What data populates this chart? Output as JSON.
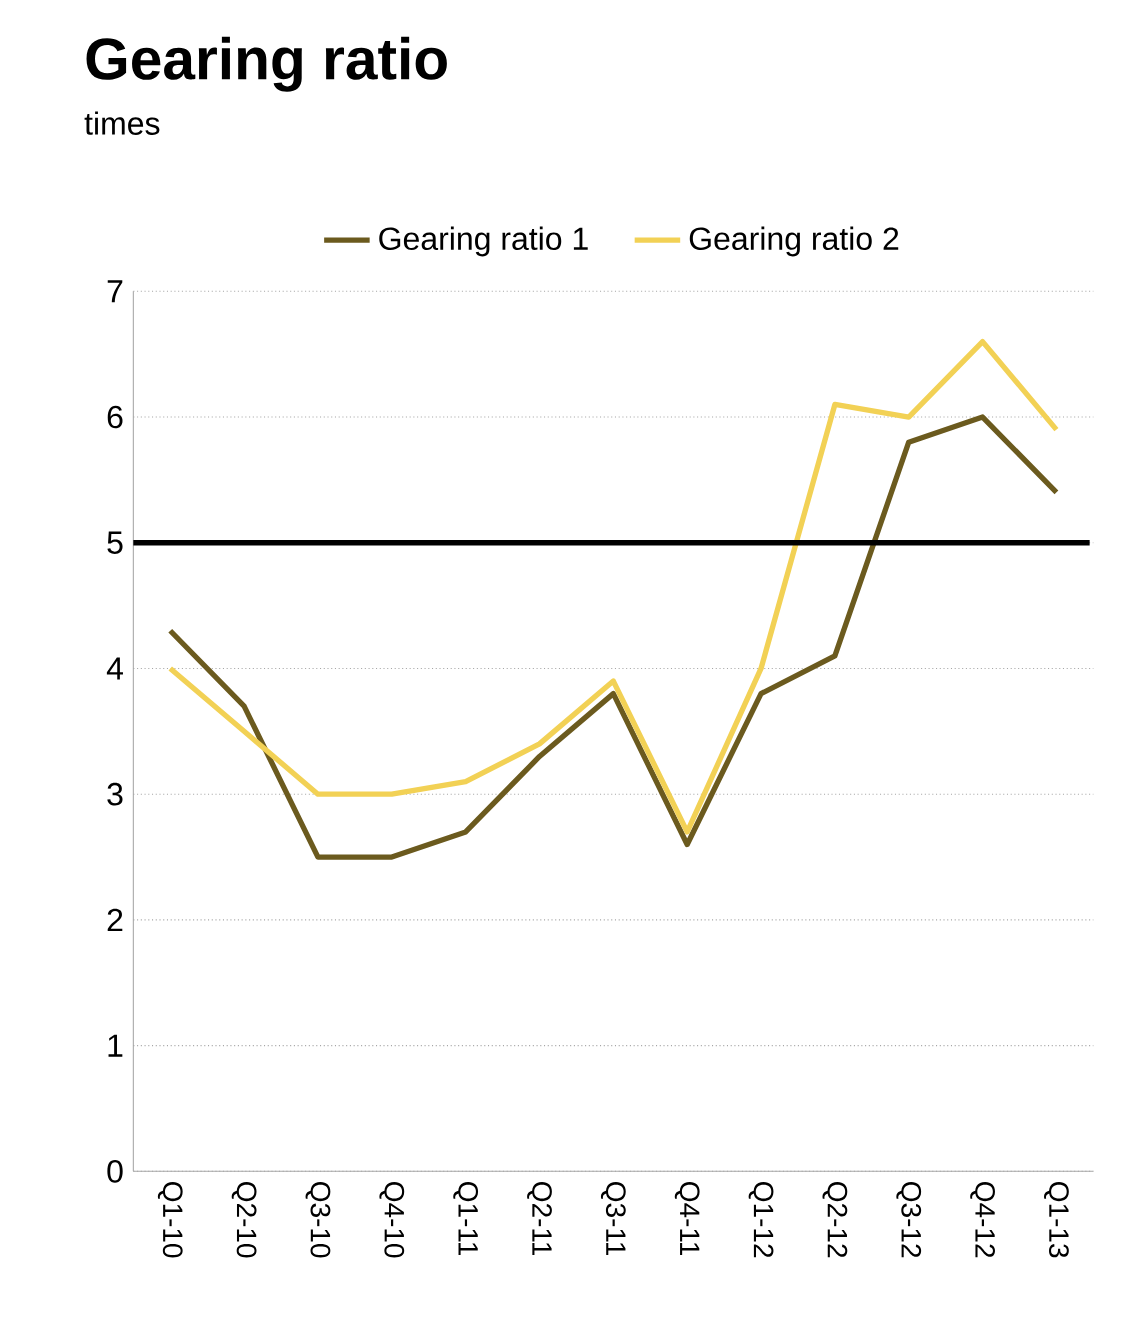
{
  "chart_data": {
    "type": "line",
    "title": "Gearing ratio",
    "subtitle": "times",
    "categories": [
      "Q1-10",
      "Q2-10",
      "Q3-10",
      "Q4-10",
      "Q1-11",
      "Q2-11",
      "Q3-11",
      "Q4-11",
      "Q1-12",
      "Q2-12",
      "Q3-12",
      "Q4-12",
      "Q1-13"
    ],
    "series": [
      {
        "name": "Gearing ratio 1",
        "color": "#6b5a1e",
        "values": [
          4.3,
          3.7,
          2.5,
          2.5,
          2.7,
          3.3,
          3.8,
          2.6,
          3.8,
          4.1,
          5.8,
          6.0,
          5.4
        ]
      },
      {
        "name": "Gearing ratio 2",
        "color": "#f2d155",
        "values": [
          4.0,
          3.5,
          3.0,
          3.0,
          3.1,
          3.4,
          3.9,
          2.7,
          4.0,
          6.1,
          6.0,
          6.6,
          5.9
        ]
      }
    ],
    "ylim": [
      0,
      7
    ],
    "yticks": [
      0,
      1,
      2,
      3,
      4,
      5,
      6,
      7
    ],
    "grid": "y",
    "legend": "top",
    "marker": "none",
    "line_style": "solid",
    "ref_lines": [
      {
        "axis": "y",
        "value": 5,
        "color": "#000000"
      }
    ]
  }
}
